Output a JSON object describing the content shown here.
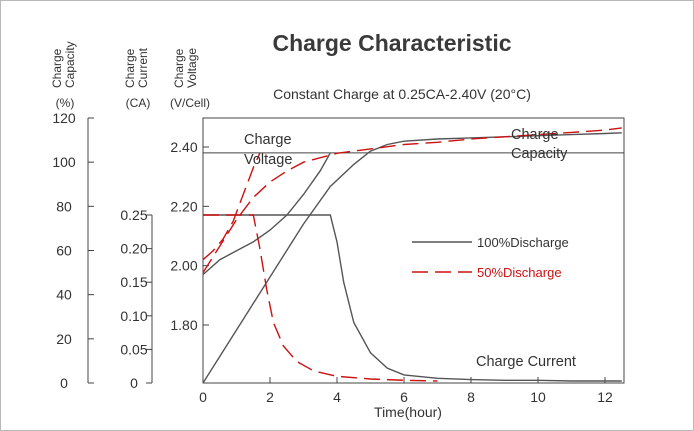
{
  "chart_data": {
    "type": "line",
    "title": "Charge Characteristic",
    "subtitle": "Constant Charge at 0.25CA-2.40V  (20°C)",
    "xlabel": "Time(hour)",
    "xlim": [
      0,
      12.5
    ],
    "x_ticks": [
      "0",
      "2",
      "4",
      "6",
      "8",
      "10",
      "12"
    ],
    "axes": {
      "capacity": {
        "label_lines": [
          "Charge",
          "Capacity"
        ],
        "unit": "(%)",
        "ticks": [
          "0",
          "20",
          "40",
          "60",
          "80",
          "100",
          "120"
        ],
        "range": [
          0,
          120
        ]
      },
      "current": {
        "label_lines": [
          "Charge",
          "Current"
        ],
        "unit": "(CA)",
        "ticks": [
          "0",
          "0.05",
          "0.10",
          "0.15",
          "0.20",
          "0.25"
        ],
        "range": [
          0,
          0.25
        ]
      },
      "voltage": {
        "label_lines": [
          "Charge",
          "Voltage"
        ],
        "unit": "(V/Cell)",
        "ticks": [
          "1.80",
          "2.00",
          "2.20",
          "2.40"
        ],
        "range": [
          1.8,
          2.4
        ]
      }
    },
    "annotations": {
      "voltage": "Charge Voltage",
      "capacity": "Charge Capacity",
      "current": "Charge Current"
    },
    "legend": {
      "placement": "right-center",
      "entries": [
        {
          "label": "100%Discharge",
          "style": "solid",
          "color": "#555555"
        },
        {
          "label": "50%Discharge",
          "style": "dashed",
          "color": "#cc1111"
        }
      ]
    },
    "series": [
      {
        "name": "100%Discharge",
        "quantity": "Charge Voltage",
        "axis": "voltage",
        "x": [
          0,
          0.5,
          1,
          1.5,
          2,
          2.5,
          3,
          3.5,
          3.8
        ],
        "y": [
          1.97,
          2.02,
          2.05,
          2.08,
          2.12,
          2.17,
          2.24,
          2.32,
          2.38
        ]
      },
      {
        "name": "100%Discharge",
        "quantity": "Charge Capacity",
        "axis": "capacity",
        "x": [
          0,
          1,
          2,
          3,
          3.8,
          4.5,
          5,
          5.5,
          6,
          7,
          8,
          9,
          10,
          11,
          12,
          12.5
        ],
        "y": [
          0,
          24,
          48,
          72,
          89,
          99,
          105,
          108,
          109.5,
          110.5,
          111,
          111.5,
          112,
          112.5,
          113,
          113.3
        ]
      },
      {
        "name": "100%Discharge",
        "quantity": "Charge Current",
        "axis": "current",
        "x": [
          0,
          3.8,
          4.0,
          4.2,
          4.5,
          5,
          5.5,
          6,
          7,
          8,
          9,
          10,
          11,
          12,
          12.5
        ],
        "y": [
          0.25,
          0.25,
          0.21,
          0.15,
          0.09,
          0.045,
          0.022,
          0.012,
          0.007,
          0.005,
          0.004,
          0.004,
          0.003,
          0.003,
          0.003
        ]
      },
      {
        "name": "50%Discharge",
        "quantity": "Charge Voltage",
        "axis": "voltage",
        "x": [
          0,
          0.3,
          0.6,
          0.9,
          1.2,
          1.5,
          1.7
        ],
        "y": [
          2.02,
          2.05,
          2.09,
          2.15,
          2.24,
          2.33,
          2.38
        ]
      },
      {
        "name": "50%Discharge",
        "quantity": "Charge Capacity",
        "axis": "capacity",
        "x": [
          0,
          0.5,
          1,
          1.5,
          2,
          2.5,
          3,
          4,
          5,
          6,
          7,
          8,
          9,
          10,
          11,
          12,
          12.5
        ],
        "y": [
          50,
          62,
          74,
          84,
          91,
          96,
          100,
          104,
          106,
          108,
          109,
          110.5,
          111.5,
          112.5,
          113.5,
          114.5,
          115.5
        ]
      },
      {
        "name": "50%Discharge",
        "quantity": "Charge Current",
        "axis": "current",
        "x": [
          0,
          1.5,
          1.7,
          1.9,
          2.1,
          2.4,
          2.8,
          3.3,
          4,
          5,
          6,
          7
        ],
        "y": [
          0.25,
          0.25,
          0.2,
          0.14,
          0.09,
          0.055,
          0.032,
          0.018,
          0.01,
          0.006,
          0.004,
          0.003
        ]
      }
    ],
    "grid": false
  }
}
